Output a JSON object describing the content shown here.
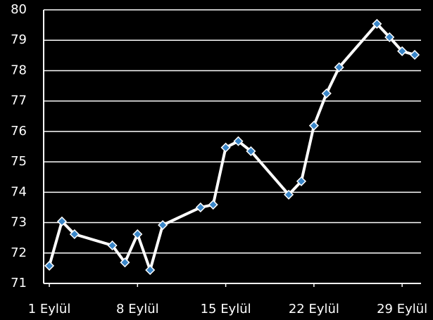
{
  "chart_data": {
    "type": "line",
    "x": [
      1,
      2,
      3,
      6,
      7,
      8,
      9,
      10,
      13,
      14,
      15,
      16,
      17,
      20,
      21,
      22,
      23,
      24,
      27,
      28,
      29,
      30
    ],
    "values": [
      71.58,
      73.04,
      72.62,
      72.25,
      71.69,
      72.62,
      71.44,
      72.92,
      73.5,
      73.59,
      75.47,
      75.68,
      75.35,
      73.92,
      74.36,
      76.19,
      77.25,
      78.11,
      79.54,
      79.1,
      78.64,
      78.52
    ],
    "color": "#ffffff",
    "marker_color": "#3a86c8",
    "xlim": [
      0.55,
      30.5
    ],
    "xticks": [
      {
        "value": 1,
        "label": "1 Eylül"
      },
      {
        "value": 8,
        "label": "8 Eylül"
      },
      {
        "value": 15,
        "label": "15 Eylül"
      },
      {
        "value": 22,
        "label": "22 Eylül"
      },
      {
        "value": 29,
        "label": "29 Eylül"
      }
    ],
    "ylim": [
      71,
      80
    ],
    "yticks": [
      71,
      72,
      73,
      74,
      75,
      76,
      77,
      78,
      79,
      80
    ],
    "grid": true
  }
}
